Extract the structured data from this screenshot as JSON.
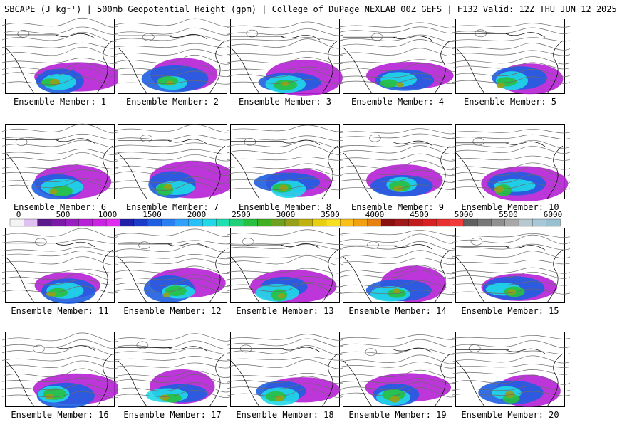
{
  "header": {
    "title": "SBCAPE (J kg⁻¹) | 500mb Geopotential Height (gpm) | College of DuPage NEXLAB 00Z GEFS | F132 Valid: 12Z THU JUN 12 2025"
  },
  "colorbar": {
    "tick_labels": [
      "0",
      "500",
      "1000",
      "1500",
      "2000",
      "2500",
      "3000",
      "3500",
      "4000",
      "4500",
      "5000",
      "5500",
      "6000"
    ],
    "colors": [
      "#f4f4f4",
      "#e0c0f0",
      "#5c1a8c",
      "#7a1aa6",
      "#9a1fc0",
      "#b620d6",
      "#cc22e4",
      "#e02ef0",
      "#2020a8",
      "#1a3cc8",
      "#1e5ee0",
      "#2a80f0",
      "#30a0f8",
      "#28c0f8",
      "#20d8e8",
      "#20e0b0",
      "#24d078",
      "#28c040",
      "#40b020",
      "#70a020",
      "#98a018",
      "#c0b010",
      "#e8d010",
      "#f8e020",
      "#f8c018",
      "#f0a010",
      "#e88010",
      "#8a1010",
      "#a01818",
      "#c01c1c",
      "#d82020",
      "#e83030",
      "#f03c3c",
      "#606060",
      "#787878",
      "#909090",
      "#a8a8a8",
      "#b8c8d0",
      "#a8c8d8",
      "#98c0d0"
    ]
  },
  "panels": [
    {
      "label": "Ensemble Member: 1"
    },
    {
      "label": "Ensemble Member: 2"
    },
    {
      "label": "Ensemble Member: 3"
    },
    {
      "label": "Ensemble Member: 4"
    },
    {
      "label": "Ensemble Member: 5"
    },
    {
      "label": "Ensemble Member: 6"
    },
    {
      "label": "Ensemble Member: 7"
    },
    {
      "label": "Ensemble Member: 8"
    },
    {
      "label": "Ensemble Member: 9"
    },
    {
      "label": "Ensemble Member: 10"
    },
    {
      "label": "Ensemble Member: 11"
    },
    {
      "label": "Ensemble Member: 12"
    },
    {
      "label": "Ensemble Member: 13"
    },
    {
      "label": "Ensemble Member: 14"
    },
    {
      "label": "Ensemble Member: 15"
    },
    {
      "label": "Ensemble Member: 16"
    },
    {
      "label": "Ensemble Member: 17"
    },
    {
      "label": "Ensemble Member: 18"
    },
    {
      "label": "Ensemble Member: 19"
    },
    {
      "label": "Ensemble Member: 20"
    }
  ]
}
